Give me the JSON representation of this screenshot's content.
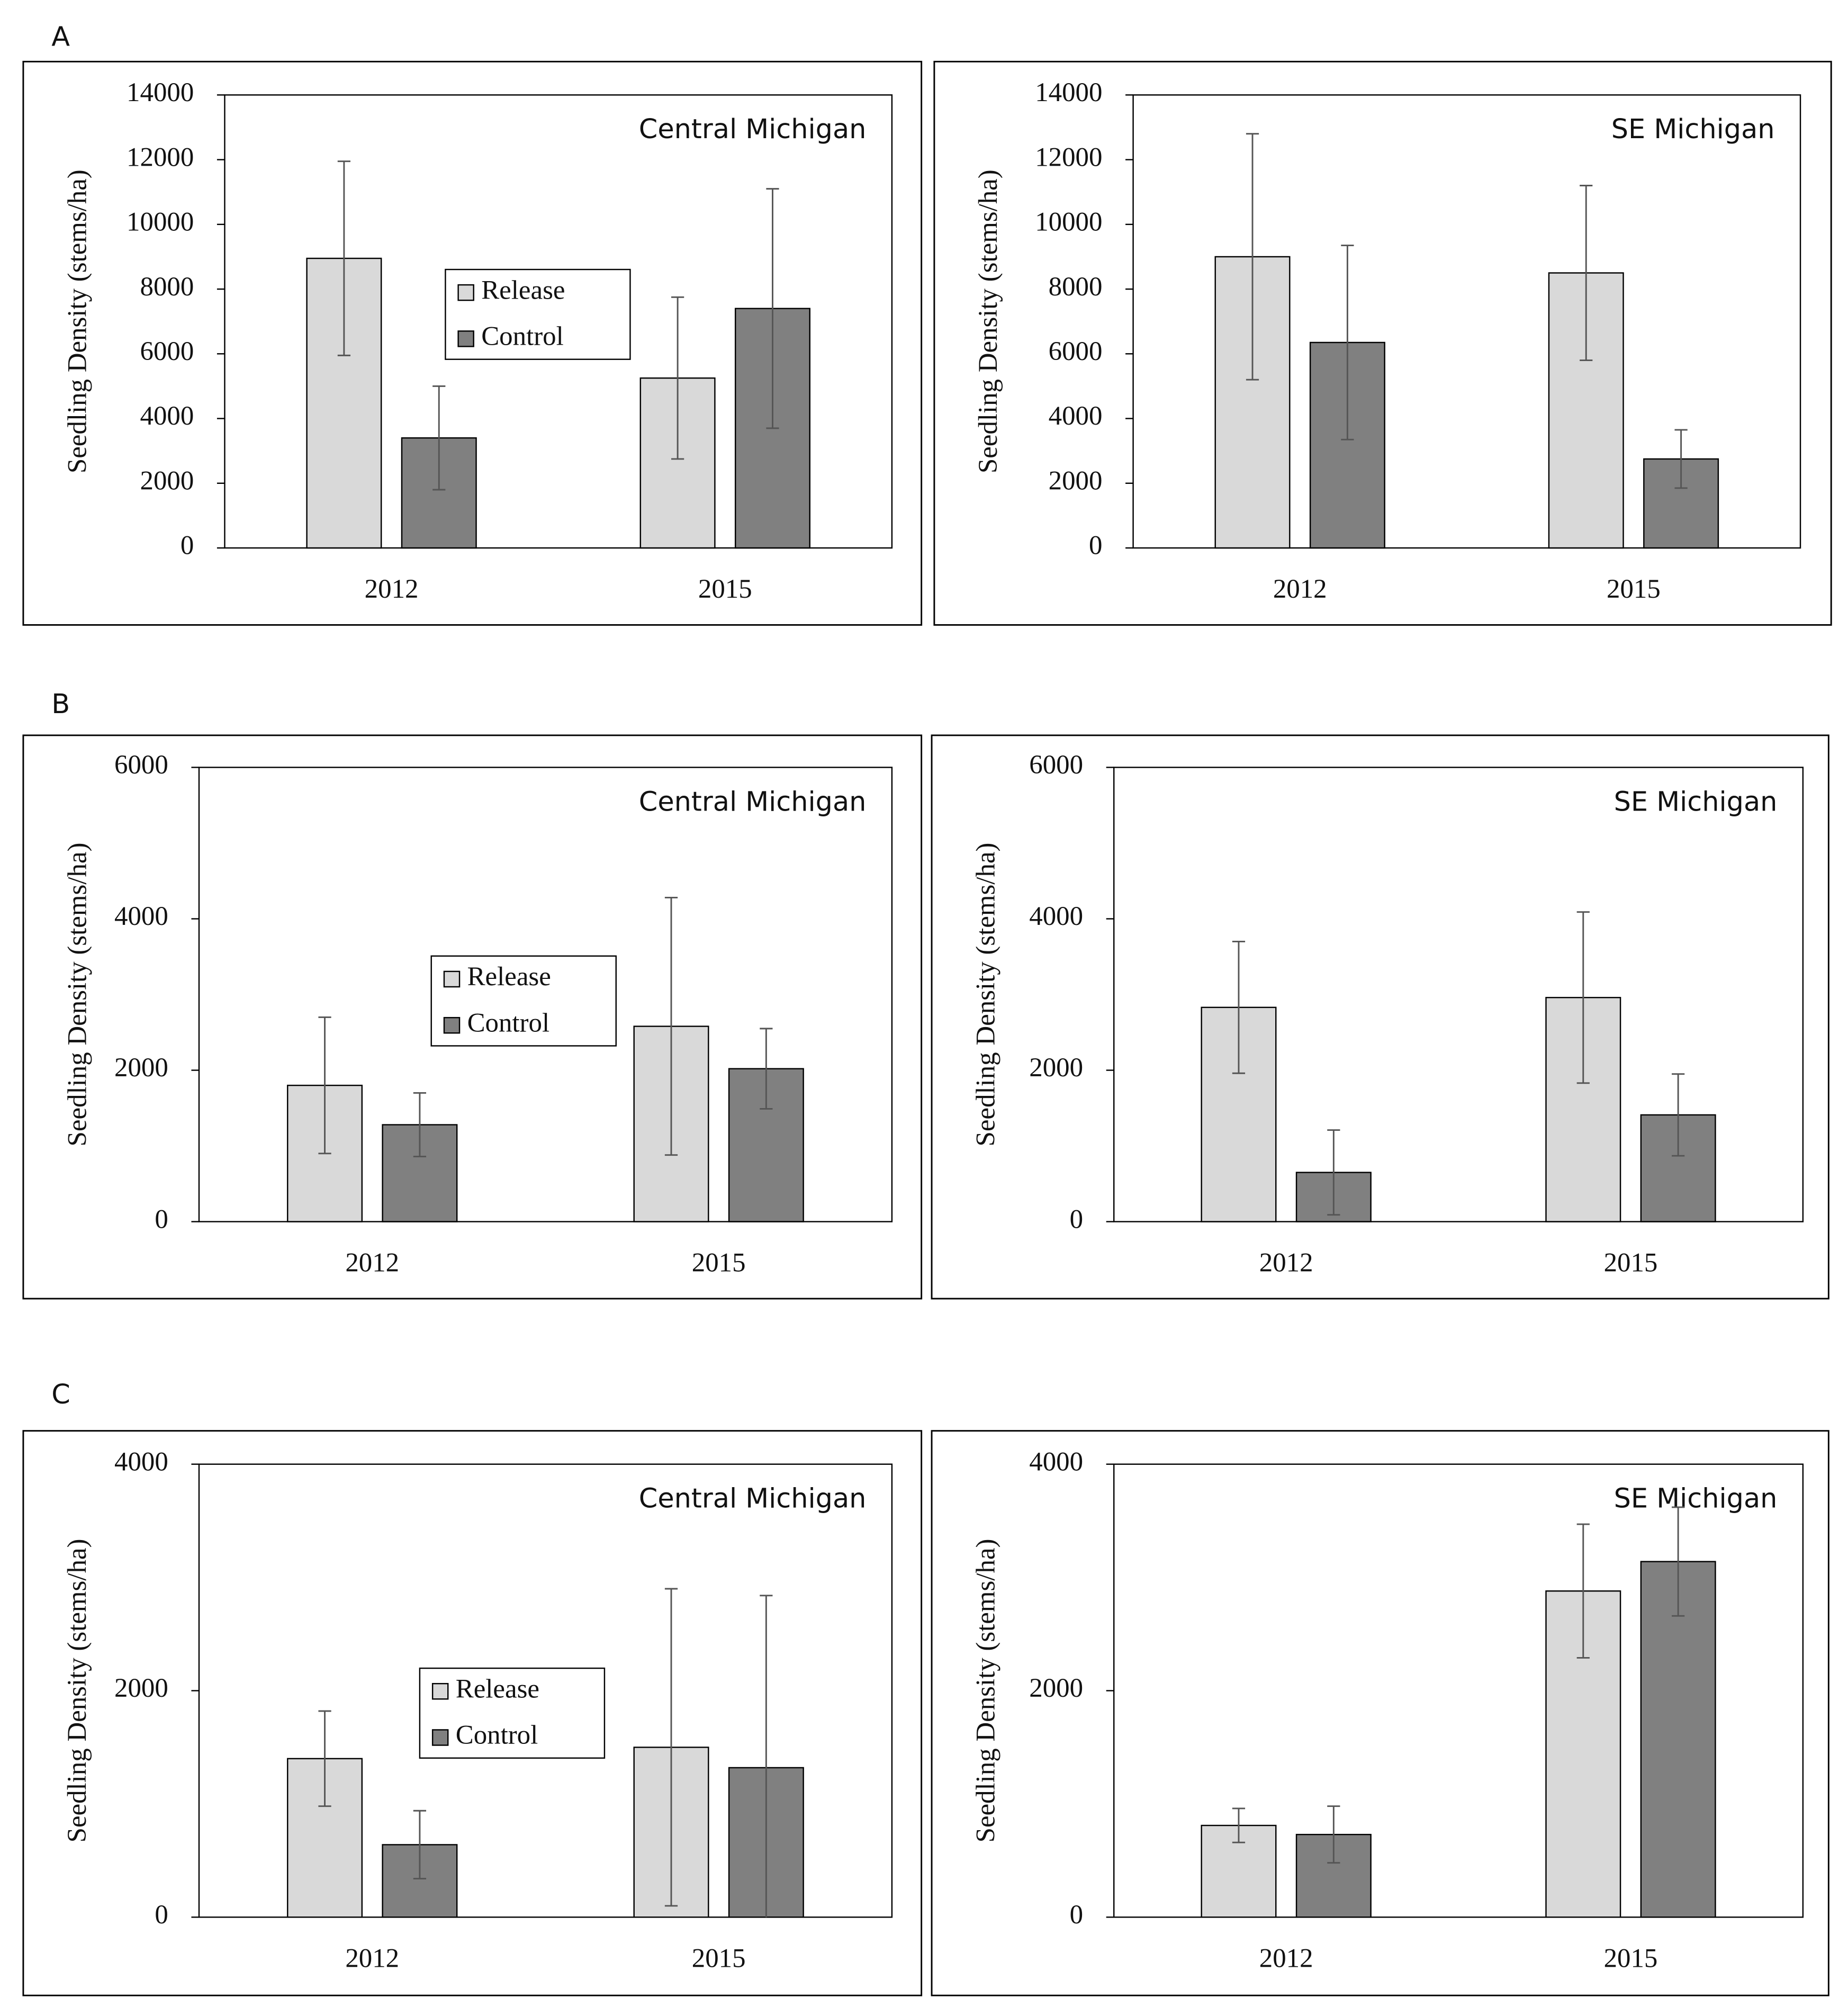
{
  "panel_labels": [
    "A",
    "B",
    "C"
  ],
  "chart_data": [
    {
      "type": "bar",
      "title": "Central Michigan",
      "ylabel": "Seedling Density (stems/ha)",
      "categories": [
        "2012",
        "2015"
      ],
      "ylim": [
        0,
        14000
      ],
      "yticks": [
        0,
        2000,
        4000,
        6000,
        8000,
        10000,
        12000,
        14000
      ],
      "legend": "center",
      "series": [
        {
          "name": "Release",
          "color": "#d9d9d9",
          "values": [
            8950,
            5250
          ],
          "errors": [
            3000,
            2500
          ]
        },
        {
          "name": "Control",
          "color": "#808080",
          "values": [
            3400,
            7400
          ],
          "errors": [
            1600,
            3700
          ]
        }
      ]
    },
    {
      "type": "bar",
      "title": "SE Michigan",
      "ylabel": "Seedling Density (stems/ha)",
      "categories": [
        "2012",
        "2015"
      ],
      "ylim": [
        0,
        14000
      ],
      "yticks": [
        0,
        2000,
        4000,
        6000,
        8000,
        10000,
        12000,
        14000
      ],
      "series": [
        {
          "color": "#d9d9d9",
          "values": [
            9000,
            8500
          ],
          "errors": [
            3800,
            2700
          ]
        },
        {
          "color": "#808080",
          "values": [
            6350,
            2750
          ],
          "errors": [
            3000,
            900
          ]
        }
      ]
    },
    {
      "type": "bar",
      "title": "Central Michigan",
      "ylabel": "Seedling Density (stems/ha)",
      "categories": [
        "2012",
        "2015"
      ],
      "ylim": [
        0,
        6000
      ],
      "yticks": [
        0,
        2000,
        4000,
        6000
      ],
      "legend": "center",
      "series": [
        {
          "name": "Release",
          "color": "#d9d9d9",
          "values": [
            1800,
            2580
          ],
          "errors": [
            900,
            1700
          ]
        },
        {
          "name": "Control",
          "color": "#808080",
          "values": [
            1280,
            2020
          ],
          "errors": [
            420,
            530
          ]
        }
      ]
    },
    {
      "type": "bar",
      "title": "SE Michigan",
      "ylabel": "Seedling Density (stems/ha)",
      "categories": [
        "2012",
        "2015"
      ],
      "ylim": [
        0,
        6000
      ],
      "yticks": [
        0,
        2000,
        4000,
        6000
      ],
      "series": [
        {
          "color": "#d9d9d9",
          "values": [
            2830,
            2960
          ],
          "errors": [
            870,
            1130
          ]
        },
        {
          "color": "#808080",
          "values": [
            650,
            1410
          ],
          "errors": [
            560,
            540
          ]
        }
      ]
    },
    {
      "type": "bar",
      "title": "Central Michigan",
      "ylabel": "Seedling Density (stems/ha)",
      "categories": [
        "2012",
        "2015"
      ],
      "ylim": [
        0,
        4000
      ],
      "yticks": [
        0,
        2000,
        4000
      ],
      "legend": "center",
      "series": [
        {
          "name": "Release",
          "color": "#d9d9d9",
          "values": [
            1400,
            1500
          ],
          "errors": [
            420,
            1400
          ]
        },
        {
          "name": "Control",
          "color": "#808080",
          "values": [
            640,
            1320
          ],
          "errors": [
            300,
            1520
          ]
        }
      ]
    },
    {
      "type": "bar",
      "title": "SE Michigan",
      "ylabel": "Seedling Density (stems/ha)",
      "categories": [
        "2012",
        "2015"
      ],
      "ylim": [
        0,
        4000
      ],
      "yticks": [
        0,
        2000,
        4000
      ],
      "series": [
        {
          "color": "#d9d9d9",
          "values": [
            810,
            2880
          ],
          "errors": [
            150,
            590
          ]
        },
        {
          "color": "#808080",
          "values": [
            730,
            3140
          ],
          "errors": [
            250,
            480
          ]
        }
      ]
    }
  ]
}
